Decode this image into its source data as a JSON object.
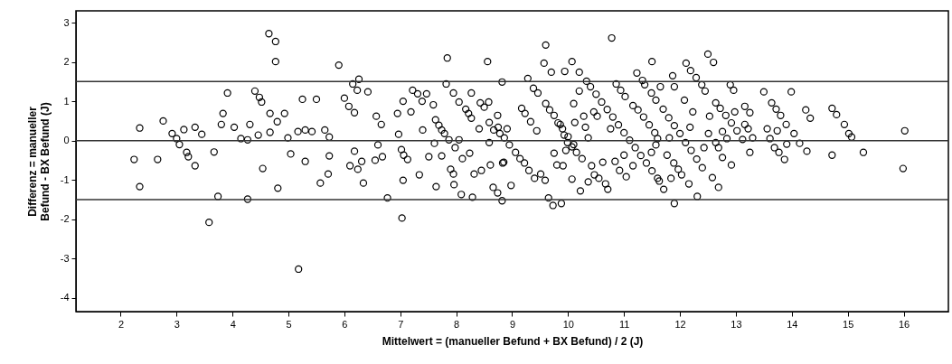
{
  "chart_data": {
    "type": "scatter",
    "xlabel": "Mittelwert = (manueller Befund + BX Befund) / 2 (J)",
    "ylabel": "Differenz = manueller Befund - BX Befund (J)",
    "xlim": [
      1.2,
      16.8
    ],
    "ylim": [
      -4.35,
      3.3
    ],
    "xticks": [
      2,
      3,
      4,
      5,
      6,
      7,
      8,
      9,
      10,
      11,
      12,
      13,
      14,
      15,
      16
    ],
    "yticks": [
      -4,
      -3,
      -2,
      -1,
      0,
      1,
      2,
      3
    ],
    "grid": false,
    "marker": "circle",
    "ref_lines": [
      {
        "axis": "y",
        "value": 1.5
      },
      {
        "axis": "y",
        "value": 0
      },
      {
        "axis": "y",
        "value": -1.5
      }
    ],
    "series": [
      {
        "color": "#000000",
        "x": [
          2.24,
          2.34,
          2.34,
          2.66,
          2.76,
          2.92,
          3.0,
          3.05,
          3.13,
          3.18,
          3.21,
          3.33,
          3.33,
          3.45,
          3.58,
          3.67,
          3.74,
          3.8,
          3.83,
          3.91,
          4.03,
          4.15,
          4.27,
          4.27,
          4.31,
          4.4,
          4.46,
          4.48,
          4.52,
          4.54,
          4.65,
          4.67,
          4.67,
          4.77,
          4.77,
          4.8,
          4.81,
          4.93,
          4.99,
          5.04,
          5.17,
          5.18,
          5.25,
          5.3,
          5.3,
          5.42,
          5.5,
          5.57,
          5.65,
          5.71,
          5.73,
          5.73,
          5.9,
          6.0,
          6.08,
          6.15,
          6.18,
          6.18,
          6.23,
          6.26,
          6.1,
          6.24,
          6.31,
          6.34,
          6.42,
          6.55,
          6.57,
          6.6,
          6.66,
          6.68,
          6.77,
          6.95,
          6.97,
          7.02,
          7.05,
          7.06,
          7.05,
          7.03,
          7.13,
          7.19,
          7.22,
          7.31,
          7.34,
          7.39,
          7.4,
          7.47,
          7.51,
          7.59,
          7.61,
          7.63,
          7.64,
          7.69,
          7.74,
          7.74,
          7.79,
          7.84,
          7.82,
          7.87,
          7.9,
          7.95,
          7.95,
          7.96,
          7.98,
          8.05,
          8.05,
          8.09,
          8.11,
          8.17,
          8.22,
          8.24,
          8.27,
          8.27,
          8.29,
          8.32,
          8.41,
          8.43,
          8.45,
          8.5,
          8.56,
          8.58,
          8.59,
          8.59,
          8.61,
          8.66,
          8.67,
          8.74,
          8.74,
          8.75,
          8.78,
          8.82,
          8.83,
          8.82,
          8.98,
          8.91,
          8.86,
          8.95,
          9.06,
          9.14,
          9.22,
          9.3,
          9.4,
          9.51,
          9.59,
          8.85,
          9.17,
          9.23,
          9.33,
          9.44,
          9.28,
          9.38,
          9.46,
          9.6,
          9.57,
          9.7,
          9.6,
          9.67,
          9.75,
          9.86,
          9.93,
          9.99,
          10.07,
          10.15,
          10.25,
          9.75,
          9.8,
          9.91,
          9.65,
          9.73,
          9.88,
          9.96,
          9.94,
          10.07,
          10.1,
          10.12,
          10.2,
          10.2,
          10.28,
          10.31,
          10.36,
          10.42,
          10.07,
          10.22,
          10.36,
          10.47,
          10.55,
          10.67,
          10.71,
          10.78,
          10.33,
          10.4,
          10.5,
          10.6,
          10.7,
          10.8,
          10.9,
          11.0,
          11.1,
          11.2,
          11.3,
          11.4,
          11.5,
          11.6,
          11.63,
          10.46,
          10.52,
          10.62,
          10.76,
          10.86,
          10.94,
          11.02,
          11.0,
          11.16,
          10.84,
          10.92,
          11.04,
          11.16,
          11.25,
          11.35,
          11.45,
          11.55,
          11.6,
          11.23,
          11.33,
          11.37,
          11.49,
          11.5,
          11.57,
          11.7,
          11.8,
          11.9,
          12.0,
          12.1,
          12.2,
          12.3,
          12.4,
          11.65,
          11.49,
          11.57,
          11.71,
          11.81,
          11.77,
          11.84,
          11.87,
          11.9,
          11.9,
          11.89,
          11.97,
          12.03,
          12.08,
          12.16,
          12.31,
          12.18,
          12.23,
          12.11,
          12.19,
          12.29,
          12.39,
          12.45,
          12.5,
          12.6,
          12.53,
          12.51,
          12.43,
          12.58,
          12.69,
          12.64,
          12.69,
          12.76,
          12.92,
          12.84,
          12.76,
          12.64,
          12.72,
          12.82,
          12.92,
          13.02,
          13.12,
          13.25,
          12.9,
          12.96,
          12.98,
          13.16,
          13.25,
          13.16,
          13.22,
          13.3,
          13.5,
          13.56,
          13.64,
          13.72,
          13.8,
          13.9,
          13.74,
          13.61,
          13.69,
          13.77,
          13.87,
          13.91,
          13.99,
          14.04,
          14.14,
          14.27,
          14.25,
          14.33,
          14.72,
          14.8,
          14.94,
          15.02,
          15.07,
          14.72,
          15.28,
          16.02,
          15.99,
          9.82,
          9.9,
          10.0,
          10.1
        ],
        "values": [
          -0.48,
          0.32,
          -1.17,
          -0.48,
          0.5,
          0.18,
          0.05,
          -0.1,
          0.28,
          -0.3,
          -0.41,
          0.34,
          -0.64,
          0.16,
          -2.08,
          -0.29,
          -1.42,
          0.41,
          0.69,
          1.21,
          0.34,
          0.05,
          0.02,
          -1.49,
          0.41,
          1.26,
          0.14,
          1.1,
          0.98,
          -0.71,
          2.72,
          0.69,
          0.21,
          2.52,
          2.01,
          0.48,
          -1.21,
          0.69,
          0.07,
          -0.34,
          0.23,
          -3.27,
          1.05,
          0.27,
          -0.53,
          0.23,
          1.05,
          -1.08,
          0.27,
          -0.85,
          -0.39,
          0.09,
          1.92,
          1.08,
          0.87,
          1.44,
          0.71,
          -0.27,
          1.28,
          1.56,
          -0.64,
          -0.73,
          -0.53,
          -1.08,
          1.24,
          -0.5,
          0.62,
          -0.11,
          0.41,
          -0.41,
          -1.46,
          0.69,
          0.16,
          -0.23,
          1.0,
          -0.37,
          -1.01,
          -1.97,
          -0.48,
          0.73,
          1.28,
          1.19,
          -0.87,
          1.0,
          0.27,
          1.19,
          -0.41,
          0.91,
          -0.07,
          0.53,
          -1.17,
          0.39,
          0.27,
          -0.39,
          0.18,
          2.1,
          1.44,
          0.02,
          -0.73,
          1.21,
          -0.85,
          -1.12,
          -0.18,
          0.98,
          0.02,
          -1.37,
          -0.46,
          0.8,
          0.69,
          -0.32,
          0.57,
          1.21,
          -1.44,
          -0.85,
          0.3,
          0.96,
          -0.76,
          0.85,
          2.01,
          0.98,
          -0.05,
          0.46,
          -0.62,
          -1.19,
          0.27,
          0.64,
          -1.33,
          0.34,
          0.18,
          1.49,
          -0.57,
          -1.53,
          -1.14,
          0.3,
          0.07,
          -0.11,
          -0.3,
          -0.46,
          -0.57,
          -0.76,
          -0.96,
          -0.85,
          -1.01,
          -0.55,
          0.82,
          0.69,
          0.48,
          0.25,
          1.58,
          1.33,
          1.21,
          2.43,
          1.97,
          1.74,
          0.94,
          0.78,
          0.64,
          0.41,
          0.14,
          -0.05,
          -0.16,
          -0.3,
          -0.46,
          -0.32,
          -0.62,
          -0.64,
          -1.46,
          -1.65,
          -1.6,
          -0.25,
          1.76,
          2.01,
          0.94,
          0.46,
          1.74,
          1.26,
          0.62,
          0.34,
          0.07,
          -0.64,
          -0.98,
          -1.28,
          -1.05,
          -0.87,
          -0.96,
          -1.1,
          -1.24,
          2.61,
          1.51,
          1.37,
          1.18,
          0.98,
          0.79,
          0.6,
          0.4,
          0.2,
          0.01,
          -0.18,
          -0.38,
          -0.57,
          -0.77,
          -0.96,
          -1.03,
          0.73,
          0.62,
          -0.55,
          0.3,
          1.44,
          1.28,
          1.12,
          -0.37,
          -0.64,
          -0.53,
          -0.76,
          -0.92,
          0.89,
          0.78,
          0.6,
          0.4,
          0.2,
          0.05,
          1.72,
          1.53,
          1.42,
          1.21,
          2.01,
          1.03,
          0.8,
          0.58,
          0.38,
          0.18,
          -0.05,
          -0.25,
          -0.47,
          -0.69,
          1.37,
          -0.3,
          -0.11,
          -1.24,
          0.07,
          -0.37,
          -0.96,
          1.65,
          1.37,
          -1.6,
          -0.57,
          -0.73,
          -0.87,
          1.03,
          -1.1,
          -1.42,
          0.34,
          0.73,
          1.97,
          1.78,
          1.6,
          1.42,
          1.26,
          2.2,
          1.99,
          0.62,
          0.18,
          -0.18,
          -0.94,
          -1.19,
          -0.05,
          -0.18,
          -0.43,
          -0.62,
          0.05,
          0.23,
          0.96,
          0.82,
          0.64,
          0.45,
          0.25,
          0.03,
          -0.3,
          1.42,
          1.28,
          0.73,
          0.87,
          0.71,
          0.41,
          0.3,
          0.07,
          1.24,
          0.3,
          0.96,
          0.8,
          0.64,
          0.41,
          0.25,
          0.05,
          -0.18,
          -0.3,
          -0.48,
          -0.09,
          1.24,
          0.18,
          -0.07,
          -0.27,
          0.78,
          0.57,
          0.82,
          0.66,
          0.41,
          0.18,
          0.09,
          -0.37,
          -0.3,
          0.25,
          -0.71,
          0.45,
          0.3,
          0.1,
          -0.1
        ]
      }
    ]
  }
}
